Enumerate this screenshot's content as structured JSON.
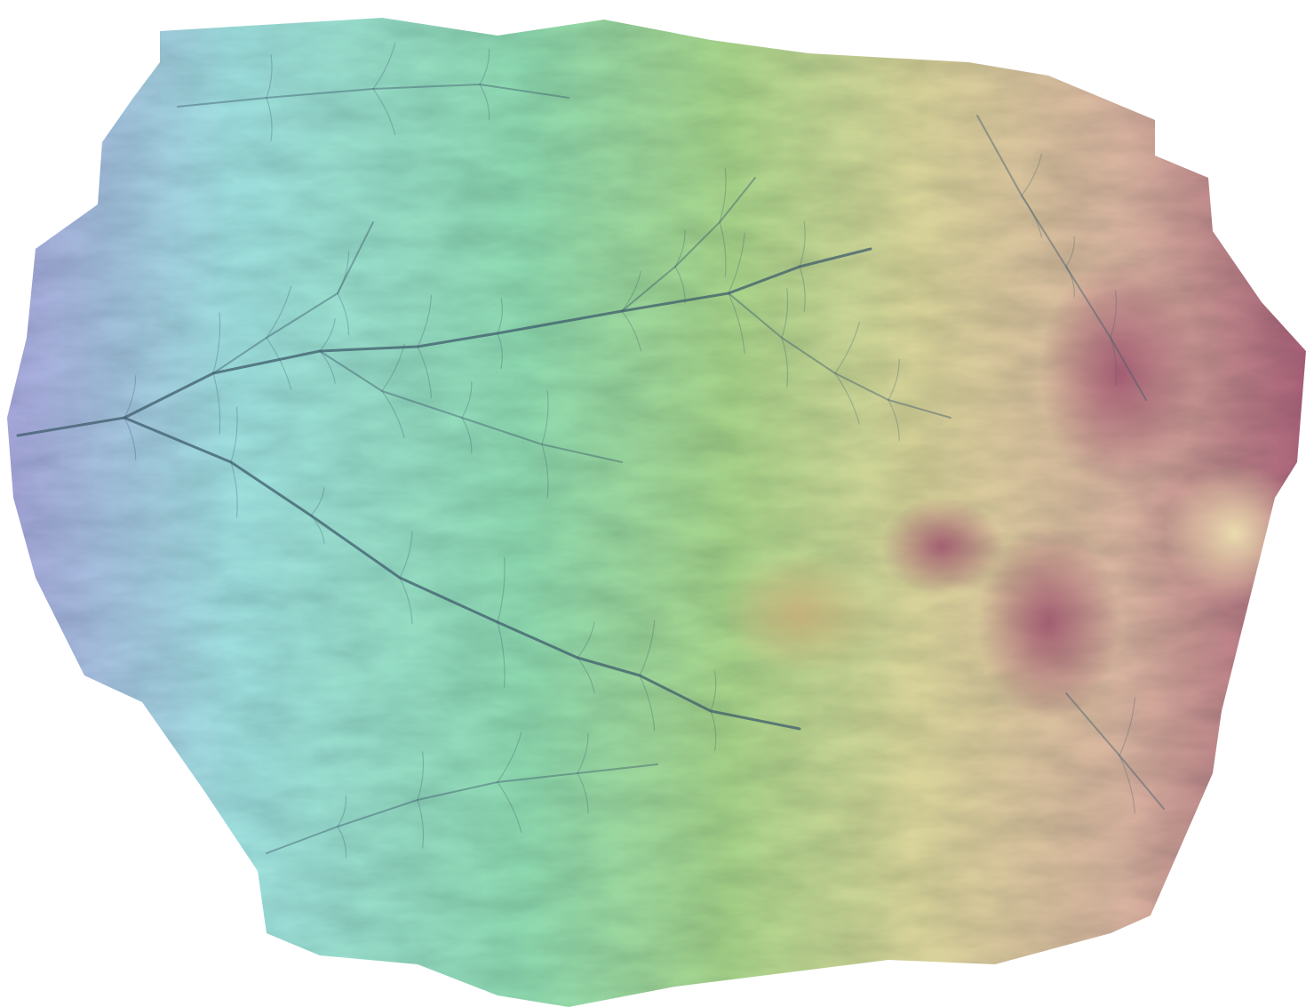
{
  "map": {
    "kind": "shaded-relief elevation mosaic",
    "background_color": "#ffffff",
    "elevation_ramp": {
      "lowest": "#a8a6dc",
      "low": "#9fe0df",
      "mid_low": "#8ed9b0",
      "mid": "#a8d48a",
      "mid_high": "#d9d49a",
      "high": "#d9b4a0",
      "highest": "#a86078"
    },
    "drainage_color": "#3f5c6c",
    "labels": []
  }
}
